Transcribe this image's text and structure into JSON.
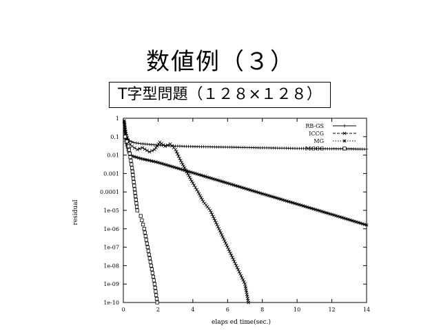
{
  "slide": {
    "title": "数値例（３）",
    "subtitle": "T字型問題（１２８×１２８）"
  },
  "chart_data": {
    "type": "line",
    "xlabel": "elaps ed time(sec.)",
    "ylabel": "residual",
    "xlim": [
      0,
      14
    ],
    "ylim": [
      1e-10,
      1
    ],
    "log_y": true,
    "x_ticks": [
      0,
      2,
      4,
      6,
      8,
      10,
      12,
      14
    ],
    "y_tick_labels": [
      "1",
      "0.1",
      "0.01",
      "0.001",
      "0.0001",
      "1e-05",
      "1e-06",
      "1e-07",
      "1e-08",
      "1e-09",
      "1e-10"
    ],
    "legend_position": "top-right",
    "series": [
      {
        "name": "RB-GS",
        "marker": "plus",
        "dash": "",
        "x": [
          0.05,
          0.1,
          0.2,
          0.35,
          0.6,
          1.0,
          1.5,
          2.0,
          3.0,
          4.0,
          6.0,
          8.0,
          10.0,
          12.0,
          14.0
        ],
        "y": [
          0.7,
          0.2,
          0.09,
          0.06,
          0.048,
          0.042,
          0.038,
          0.035,
          0.031,
          0.029,
          0.027,
          0.025,
          0.023,
          0.022,
          0.021
        ]
      },
      {
        "name": "ICCG",
        "marker": "x",
        "dash": "4,2",
        "x": [
          0.05,
          0.15,
          0.3,
          0.5,
          0.8,
          1.1,
          1.5,
          1.8,
          2.1,
          2.4,
          2.7,
          3.0,
          3.3,
          3.7,
          4.0,
          4.3,
          4.6,
          5.0,
          5.5,
          6.0,
          6.5,
          7.0,
          7.2
        ],
        "y": [
          0.7,
          0.15,
          0.05,
          0.03,
          0.02,
          0.025,
          0.015,
          0.02,
          0.05,
          0.03,
          0.04,
          0.02,
          0.005,
          0.001,
          0.0003,
          0.0001,
          3e-05,
          1e-05,
          1e-06,
          1e-07,
          1e-08,
          1e-09,
          1e-10
        ]
      },
      {
        "name": "MG",
        "marker": "star",
        "dash": "1.5,2",
        "x": [
          0.05,
          0.15,
          0.3,
          0.5,
          1.0,
          2.0,
          4.0,
          6.0,
          8.0,
          10.0,
          12.0,
          14.0
        ],
        "y": [
          0.7,
          0.05,
          0.015,
          0.009,
          0.0065,
          0.004,
          0.0011,
          0.0003,
          8e-05,
          2.2e-05,
          6e-06,
          1.6e-06
        ]
      },
      {
        "name": "MGCG",
        "marker": "square",
        "dash": "1,1.5",
        "x": [
          0.1,
          0.3,
          0.5,
          0.8,
          1.0,
          1.2,
          1.4,
          1.6,
          1.8,
          1.95
        ],
        "y": [
          0.1,
          0.03,
          0.002,
          1e-05,
          5e-06,
          1e-06,
          1e-07,
          1e-08,
          1e-09,
          1e-10
        ]
      }
    ]
  }
}
